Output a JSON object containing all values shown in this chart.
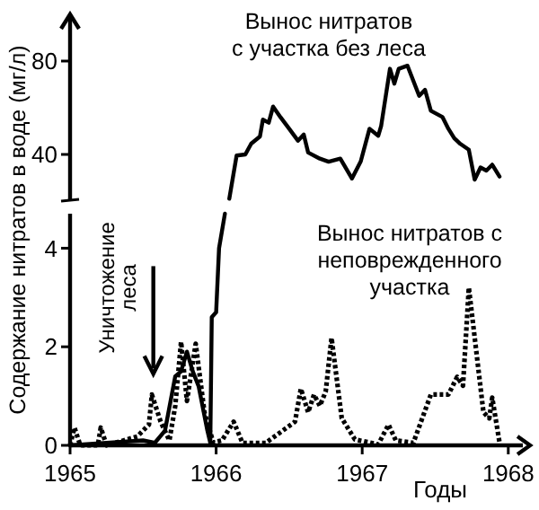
{
  "chart_data": [
    {
      "type": "line",
      "ylabel": "Содержание нитратов в воде (мг/л)",
      "xlim": [
        1965,
        1968
      ],
      "xticks": [
        1965,
        1966,
        1967,
        1968
      ],
      "ylim": [
        20,
        100
      ],
      "yticks": [
        40,
        80
      ],
      "tick_labels": "y",
      "legend": false,
      "grid": false,
      "series": [
        {
          "name": "Вынос нитратов\nс участка без леса",
          "color": "#000000",
          "line_style": "solid",
          "x": [
            1966.09,
            1966.14,
            1966.2,
            1966.24,
            1966.3,
            1966.32,
            1966.36,
            1966.39,
            1966.44,
            1966.5,
            1966.56,
            1966.6,
            1966.63,
            1966.71,
            1966.77,
            1966.85,
            1966.93,
            1966.99,
            1967.05,
            1967.11,
            1967.13,
            1967.19,
            1967.22,
            1967.25,
            1967.31,
            1967.39,
            1967.43,
            1967.47,
            1967.55,
            1967.59,
            1967.63,
            1967.67,
            1967.73,
            1967.77,
            1967.81,
            1967.85,
            1967.89,
            1967.94
          ],
          "values": [
            21,
            39.5,
            40,
            44.6,
            47.7,
            54.9,
            53.6,
            60.5,
            56,
            51,
            45.9,
            48.5,
            40.8,
            38.2,
            36.9,
            38.2,
            29.7,
            37,
            51,
            48,
            52.3,
            76.7,
            70.3,
            76.7,
            78,
            65.1,
            67.7,
            58.7,
            56,
            51,
            47,
            44.6,
            42,
            29.2,
            34.4,
            33.1,
            35.6,
            30.5
          ]
        }
      ]
    },
    {
      "type": "line",
      "xlabel": "Годы",
      "xlim": [
        1965,
        1968.1
      ],
      "xticks": [
        1965,
        1966,
        1967,
        1968
      ],
      "ylim": [
        0,
        4.7
      ],
      "yticks": [
        0,
        2,
        4
      ],
      "legend": false,
      "grid": false,
      "annotations": [
        "Уничтожение\nлеса"
      ],
      "series": [
        {
          "color": "#000000",
          "line_style": "solid",
          "x": [
            1965,
            1965.5,
            1965.58,
            1965.65,
            1965.72,
            1965.76,
            1965.8,
            1965.84,
            1965.88,
            1965.94,
            1965.96,
            1965.97,
            1966,
            1966.02,
            1966.06
          ],
          "values": [
            0,
            0.1,
            0.05,
            0.3,
            1.4,
            1.5,
            1.9,
            1.5,
            1.2,
            0.3,
            0.05,
            2.6,
            2.7,
            4,
            4.7
          ]
        },
        {
          "name": "Вынос нитратов с\nнеповрежденного\nучастка",
          "color": "#000000",
          "line_style": "dotted",
          "x": [
            1965,
            1965.03,
            1965.07,
            1965.19,
            1965.21,
            1965.25,
            1965.46,
            1965.54,
            1965.56,
            1965.62,
            1965.68,
            1965.72,
            1965.76,
            1965.8,
            1965.86,
            1965.92,
            1965.98,
            1966.04,
            1966.12,
            1966.18,
            1966.34,
            1966.54,
            1966.58,
            1966.63,
            1966.67,
            1966.71,
            1966.75,
            1966.79,
            1966.86,
            1966.95,
            1967.11,
            1967.18,
            1967.23,
            1967.35,
            1967.47,
            1967.59,
            1967.65,
            1967.69,
            1967.73,
            1967.83,
            1967.87,
            1967.89,
            1967.94
          ],
          "values": [
            0,
            0.36,
            0,
            0,
            0.36,
            0,
            0.18,
            0.42,
            1.03,
            0.48,
            0.1,
            0.8,
            2.1,
            0.9,
            2.06,
            0.67,
            0.06,
            0.1,
            0.48,
            0.05,
            0.05,
            0.48,
            1.15,
            0.67,
            1.03,
            0.8,
            1.09,
            2.18,
            0.55,
            0.12,
            0.02,
            0.42,
            0.1,
            0.05,
            1.03,
            1.03,
            1.39,
            1.21,
            3.2,
            0.67,
            0.55,
            0.97,
            0.06
          ]
        }
      ]
    }
  ]
}
